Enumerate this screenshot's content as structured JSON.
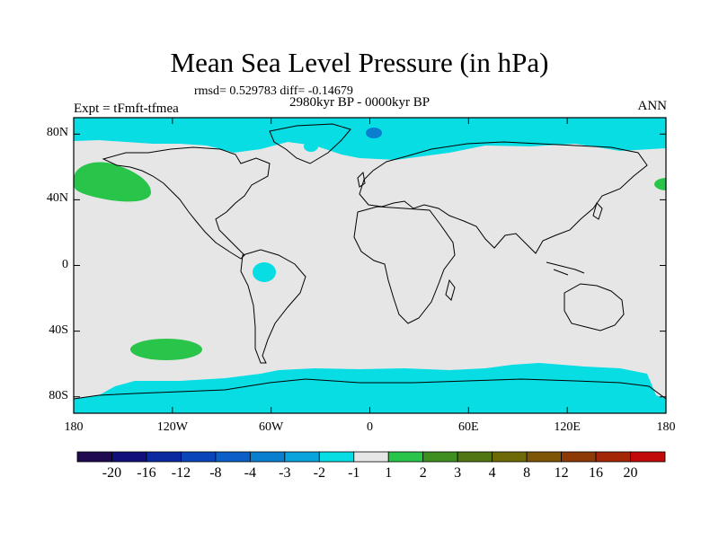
{
  "title": "Mean Sea Level Pressure (in hPa)",
  "stats": "rmsd= 0.529783 diff= -0.14679",
  "period": "2980kyr BP - 0000kyr BP",
  "expt": "Expt = tFmft-tfmea",
  "season": "ANN",
  "lat_labels": [
    "80N",
    "40N",
    "0",
    "40S",
    "80S"
  ],
  "lat_values": [
    80,
    40,
    0,
    -40,
    -80
  ],
  "lon_labels": [
    "180",
    "120W",
    "60W",
    "0",
    "60E",
    "120E",
    "180"
  ],
  "lon_values": [
    -180,
    -120,
    -60,
    0,
    60,
    120,
    180
  ],
  "lat_range": [
    -90,
    90
  ],
  "lon_range": [
    -180,
    180
  ],
  "colors": {
    "background_field": "#e6e6e6",
    "land_outline": "#000000",
    "colorbar": [
      "#1f0a52",
      "#12107a",
      "#0b2aa0",
      "#0a46b8",
      "#0b5fc6",
      "#0a7fd0",
      "#0aa4dc",
      "#07dde3",
      "#e6e6e6",
      "#29c44a",
      "#3f8f20",
      "#4f7612",
      "#6e6a08",
      "#7e5406",
      "#8e3a06",
      "#a32607",
      "#c20a0a"
    ]
  },
  "colorbar_labels": [
    "-20",
    "-16",
    "-12",
    "-8",
    "-4",
    "-3",
    "-2",
    "-1",
    "1",
    "2",
    "3",
    "4",
    "8",
    "12",
    "16",
    "20"
  ],
  "anomalies": [
    {
      "name": "arctic-cyan-band",
      "value": "-1 to -2"
    },
    {
      "name": "antarctic-cyan-band",
      "value": "-1 to -2"
    },
    {
      "name": "north-pacific-green",
      "value": "1 to 2"
    },
    {
      "name": "south-pacific-green",
      "value": "1 to 2"
    },
    {
      "name": "amazon-cyan",
      "value": "-1 to -2"
    },
    {
      "name": "greenland-sea-blue",
      "value": "-2 to -3"
    }
  ]
}
